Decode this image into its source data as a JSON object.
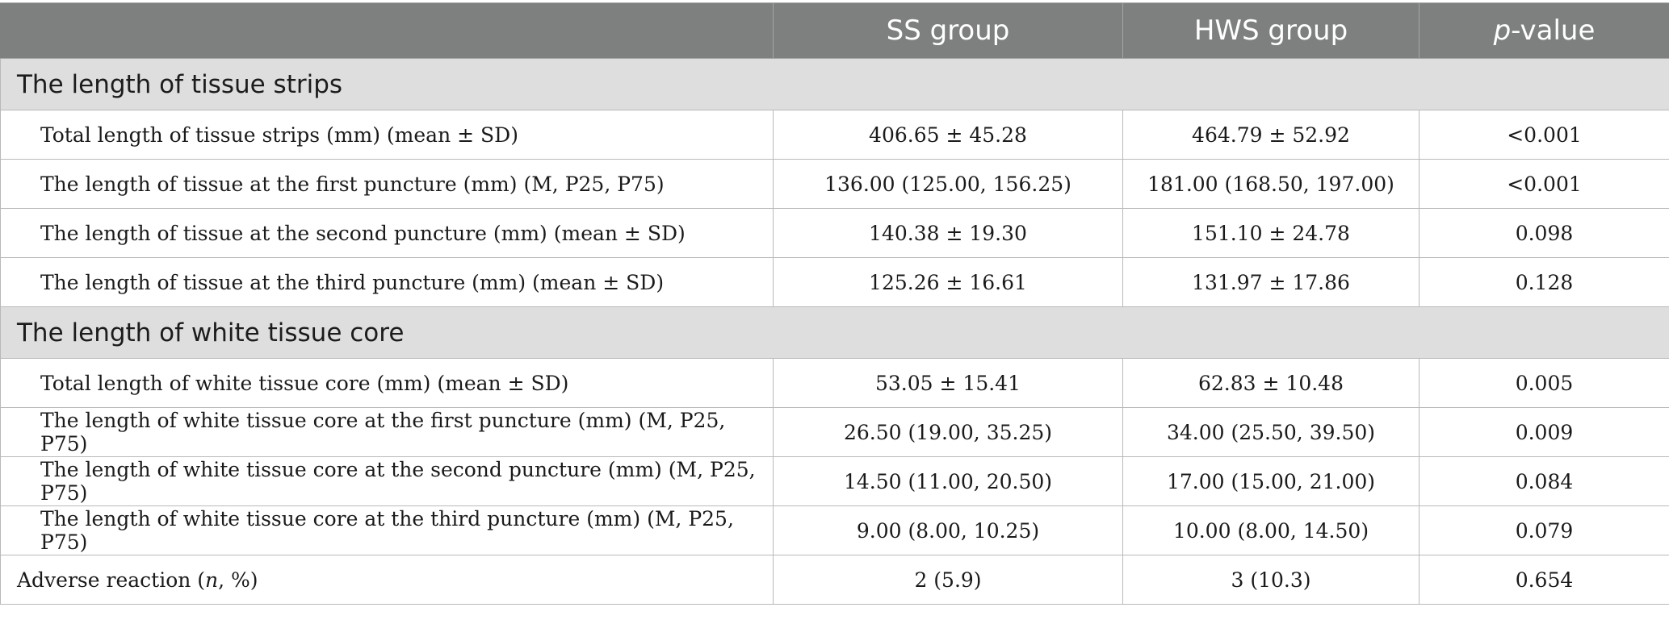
{
  "header": {
    "col1": "SS group",
    "col2": "HWS group",
    "col3_italic": "p",
    "col3_rest": "-value"
  },
  "sections": [
    {
      "title": "The length of tissue strips",
      "rows": [
        {
          "label": "Total length of tissue strips (mm) (mean ± SD)",
          "ss": "406.65 ± 45.28",
          "hws": "464.79 ± 52.92",
          "p": "<0.001"
        },
        {
          "label": "The length of tissue at the first puncture (mm) (M, P25, P75)",
          "ss": "136.00 (125.00, 156.25)",
          "hws": "181.00 (168.50, 197.00)",
          "p": "<0.001"
        },
        {
          "label": "The length of tissue at the second puncture (mm) (mean ± SD)",
          "ss": "140.38 ± 19.30",
          "hws": "151.10 ± 24.78",
          "p": "0.098"
        },
        {
          "label": "The length of tissue at the third puncture (mm) (mean ± SD)",
          "ss": "125.26 ± 16.61",
          "hws": "131.97 ± 17.86",
          "p": "0.128"
        }
      ]
    },
    {
      "title": "The length of white tissue core",
      "rows": [
        {
          "label": "Total length of white tissue core (mm) (mean ± SD)",
          "ss": "53.05 ± 15.41",
          "hws": "62.83 ± 10.48",
          "p": "0.005"
        },
        {
          "label": "The length of white tissue core at the first puncture (mm) (M, P25, P75)",
          "ss": "26.50 (19.00, 35.25)",
          "hws": "34.00 (25.50, 39.50)",
          "p": "0.009"
        },
        {
          "label": "The length of white tissue core at the second puncture (mm) (M, P25, P75)",
          "ss": "14.50 (11.00, 20.50)",
          "hws": "17.00 (15.00, 21.00)",
          "p": "0.084"
        },
        {
          "label": "The length of white tissue core at the third puncture (mm) (M, P25, P75)",
          "ss": "9.00 (8.00, 10.25)",
          "hws": "10.00 (8.00, 14.50)",
          "p": "0.079"
        }
      ]
    }
  ],
  "adverse": {
    "label_pre": "Adverse reaction (",
    "label_italic": "n",
    "label_post": ", %)",
    "ss": "2 (5.9)",
    "hws": "3 (10.3)",
    "p": "0.654"
  }
}
